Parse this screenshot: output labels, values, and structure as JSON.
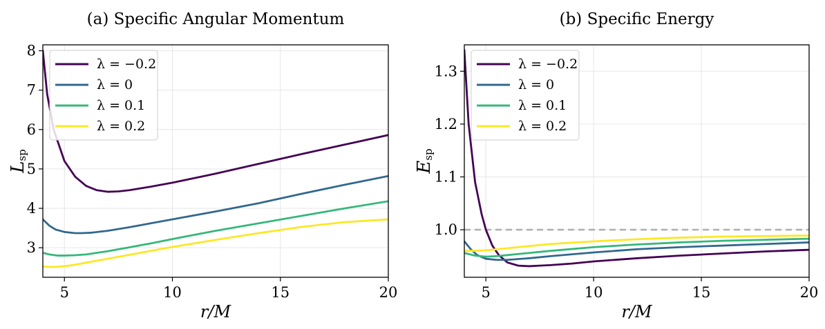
{
  "chart_data": [
    {
      "type": "line",
      "title": "(a) Specific Angular Momentum",
      "xlabel": "r/M",
      "ylabel": "L",
      "ylabel_sub": "sp",
      "xlim": [
        4,
        20
      ],
      "ylim": [
        2.25,
        8.15
      ],
      "xticks": [
        5,
        10,
        15,
        20
      ],
      "yticks": [
        3,
        4,
        5,
        6,
        7,
        8
      ],
      "grid": true,
      "legend_position": "upper-left",
      "series": [
        {
          "name": "λ = −0.2",
          "color": "#440154",
          "x": [
            4.0,
            4.2,
            4.5,
            5.0,
            5.5,
            6.0,
            6.5,
            7.0,
            7.5,
            8.0,
            9.0,
            10.0,
            12.0,
            14.0,
            16.0,
            18.0,
            20.0
          ],
          "y": [
            8.0,
            6.9,
            6.0,
            5.2,
            4.8,
            4.57,
            4.46,
            4.42,
            4.43,
            4.46,
            4.55,
            4.65,
            4.88,
            5.13,
            5.38,
            5.62,
            5.86
          ]
        },
        {
          "name": "λ = 0",
          "color": "#31688e",
          "x": [
            4.0,
            4.3,
            4.6,
            5.0,
            5.5,
            5.8,
            6.2,
            7.0,
            8.0,
            9.0,
            10.0,
            12.0,
            14.0,
            16.0,
            18.0,
            20.0
          ],
          "y": [
            3.72,
            3.56,
            3.46,
            3.4,
            3.37,
            3.37,
            3.38,
            3.43,
            3.52,
            3.62,
            3.72,
            3.92,
            4.13,
            4.37,
            4.6,
            4.82
          ]
        },
        {
          "name": "λ = 0.1",
          "color": "#35b779",
          "x": [
            4.0,
            4.3,
            4.7,
            5.0,
            5.5,
            6.0,
            7.0,
            8.0,
            9.0,
            10.0,
            12.0,
            14.0,
            16.0,
            18.0,
            20.0
          ],
          "y": [
            2.87,
            2.83,
            2.8,
            2.8,
            2.81,
            2.83,
            2.91,
            3.01,
            3.11,
            3.22,
            3.43,
            3.62,
            3.81,
            4.0,
            4.18
          ]
        },
        {
          "name": "λ = 0.2",
          "color": "#fde725",
          "x": [
            4.0,
            4.5,
            5.0,
            5.5,
            6.0,
            7.0,
            8.0,
            9.0,
            10.0,
            12.0,
            14.0,
            16.0,
            18.0,
            20.0
          ],
          "y": [
            2.52,
            2.51,
            2.53,
            2.57,
            2.62,
            2.72,
            2.82,
            2.92,
            3.02,
            3.2,
            3.37,
            3.53,
            3.65,
            3.72
          ]
        }
      ]
    },
    {
      "type": "line",
      "title": "(b) Specific Energy",
      "xlabel": "r/M",
      "ylabel": "E",
      "ylabel_sub": "sp",
      "xlim": [
        4,
        20
      ],
      "ylim": [
        0.91,
        1.35
      ],
      "xticks": [
        5,
        10,
        15,
        20
      ],
      "yticks": [
        1.0,
        1.1,
        1.2,
        1.3
      ],
      "ytick_labels": [
        "1.0",
        "1.1",
        "1.2",
        "1.3"
      ],
      "grid": true,
      "legend_position": "upper-left",
      "reference_line": {
        "y": 1.0,
        "style": "dashed",
        "color": "#b0b0b0"
      },
      "series": [
        {
          "name": "λ = −0.2",
          "color": "#440154",
          "x": [
            4.0,
            4.2,
            4.5,
            4.8,
            5.0,
            5.3,
            5.6,
            6.0,
            6.5,
            7.0,
            7.5,
            8.0,
            9.0,
            10.0,
            12.0,
            14.0,
            16.0,
            18.0,
            20.0
          ],
          "y": [
            1.34,
            1.2,
            1.09,
            1.03,
            1.0,
            0.97,
            0.952,
            0.938,
            0.932,
            0.931,
            0.932,
            0.933,
            0.936,
            0.94,
            0.946,
            0.951,
            0.955,
            0.959,
            0.962
          ]
        },
        {
          "name": "λ = 0",
          "color": "#31688e",
          "x": [
            4.0,
            4.3,
            4.6,
            5.0,
            5.5,
            6.0,
            7.0,
            8.0,
            10.0,
            12.0,
            14.0,
            16.0,
            18.0,
            20.0
          ],
          "y": [
            0.978,
            0.963,
            0.952,
            0.945,
            0.943,
            0.943,
            0.946,
            0.95,
            0.957,
            0.963,
            0.967,
            0.97,
            0.973,
            0.976
          ]
        },
        {
          "name": "λ = 0.1",
          "color": "#35b779",
          "x": [
            4.0,
            4.5,
            5.0,
            5.5,
            6.0,
            7.0,
            8.0,
            10.0,
            12.0,
            14.0,
            16.0,
            18.0,
            20.0
          ],
          "y": [
            0.956,
            0.951,
            0.949,
            0.95,
            0.952,
            0.956,
            0.96,
            0.967,
            0.972,
            0.976,
            0.979,
            0.981,
            0.983
          ]
        },
        {
          "name": "λ = 0.2",
          "color": "#fde725",
          "x": [
            4.0,
            4.5,
            5.0,
            5.5,
            6.0,
            7.0,
            8.0,
            10.0,
            12.0,
            14.0,
            16.0,
            18.0,
            20.0
          ],
          "y": [
            0.96,
            0.96,
            0.961,
            0.963,
            0.965,
            0.969,
            0.973,
            0.978,
            0.982,
            0.985,
            0.987,
            0.988,
            0.989
          ]
        }
      ]
    }
  ]
}
